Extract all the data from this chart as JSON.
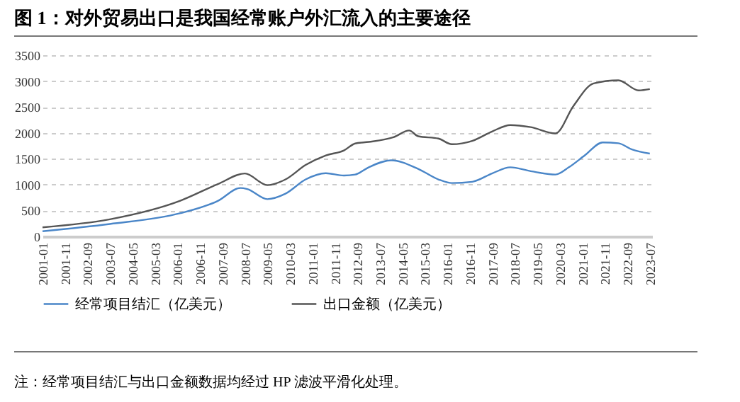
{
  "chart_data": {
    "type": "line",
    "title": "图 1：对外贸易出口是我国经常账户外汇流入的主要途径",
    "annotations": [
      "注：经常项目结汇与出口金额数据均经过 HP 滤波平滑化处理。"
    ],
    "xlim": [
      "2001-01",
      "2023-08"
    ],
    "xticks": [
      "2001-01",
      "2001-11",
      "2002-09",
      "2003-07",
      "2004-05",
      "2005-03",
      "2006-01",
      "2006-11",
      "2007-09",
      "2008-07",
      "2009-05",
      "2010-03",
      "2011-01",
      "2011-11",
      "2012-09",
      "2013-07",
      "2014-05",
      "2015-03",
      "2016-01",
      "2016-11",
      "2017-09",
      "2018-07",
      "2019-05",
      "2020-03",
      "2021-01",
      "2021-11",
      "2022-09",
      "2023-07"
    ],
    "ylim": [
      0,
      3500
    ],
    "yticks": [
      0,
      500,
      1000,
      1500,
      2000,
      2500,
      3000,
      3500
    ],
    "grid": "y",
    "legend": "bottom",
    "series": [
      {
        "name": "经常项目结汇（亿美元）",
        "color": "#4a86c8",
        "x": [
          "2001-01",
          "2003-07",
          "2006-02",
          "2007-07",
          "2008-05",
          "2008-08",
          "2009-05",
          "2010-01",
          "2010-10",
          "2011-07",
          "2012-03",
          "2012-08",
          "2013-02",
          "2013-12",
          "2014-12",
          "2015-09",
          "2016-03",
          "2016-12",
          "2017-09",
          "2018-05",
          "2019-02",
          "2020-01",
          "2020-07",
          "2021-02",
          "2021-10",
          "2022-05",
          "2022-11",
          "2023-07"
        ],
        "values": [
          100,
          240,
          445,
          685,
          935,
          915,
          720,
          825,
          1100,
          1220,
          1175,
          1195,
          1335,
          1470,
          1305,
          1100,
          1030,
          1055,
          1220,
          1335,
          1260,
          1195,
          1335,
          1565,
          1815,
          1800,
          1680,
          1600
        ]
      },
      {
        "name": "出口金额（亿美元）",
        "color": "#555555",
        "x": [
          "2001-01",
          "2003-07",
          "2006-02",
          "2007-07",
          "2008-07",
          "2009-05",
          "2010-01",
          "2010-10",
          "2011-07",
          "2012-03",
          "2012-08",
          "2013-02",
          "2014-01",
          "2014-08",
          "2014-12",
          "2015-09",
          "2016-03",
          "2016-12",
          "2017-09",
          "2018-05",
          "2019-02",
          "2020-01",
          "2020-09",
          "2021-06",
          "2022-05",
          "2023-02",
          "2023-07"
        ],
        "values": [
          175,
          330,
          685,
          1010,
          1215,
          990,
          1100,
          1380,
          1565,
          1660,
          1795,
          1825,
          1915,
          2045,
          1935,
          1890,
          1780,
          1845,
          2030,
          2150,
          2110,
          1990,
          2520,
          2955,
          3015,
          2820,
          2845
        ]
      }
    ]
  }
}
